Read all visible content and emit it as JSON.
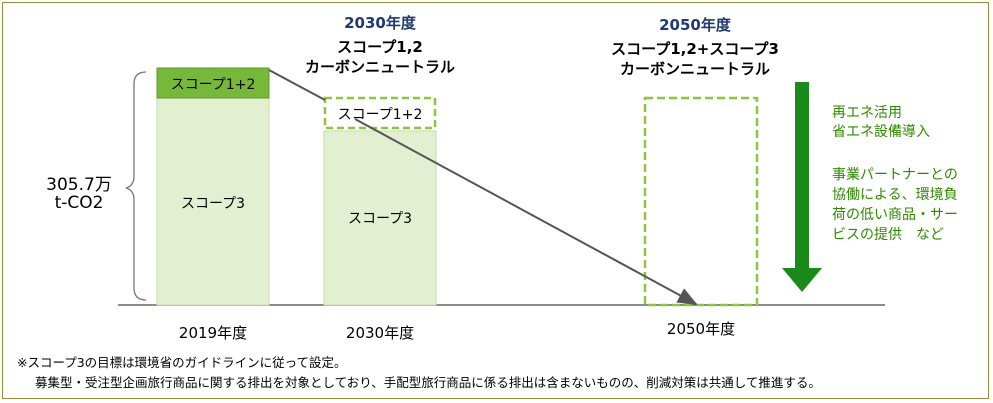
{
  "header_2030": {
    "year": "2030年度",
    "line1": "スコープ1,2",
    "line2": "カーボンニュートラル"
  },
  "header_2050": {
    "year": "2050年度",
    "line1": "スコープ1,2+スコープ3",
    "line2": "カーボンニュートラル"
  },
  "total_emissions": {
    "value": "305.7万",
    "unit": "t-CO2"
  },
  "bars": {
    "bar_2019": {
      "scope12": "スコープ1+2",
      "scope3": "スコープ3"
    },
    "bar_2030": {
      "scope12": "スコープ1+2",
      "scope3": "スコープ3"
    }
  },
  "axis": {
    "year_2019": "2019年度",
    "year_2030": "2030年度",
    "year_2050": "2050年度"
  },
  "measures": {
    "line1": "再エネ活用",
    "line2": "省エネ設備導入",
    "line3": "事業パートナーとの",
    "line4": "協働による、環境負",
    "line5": "荷の低い商品・サー",
    "line6": "ビスの提供　など"
  },
  "notes": {
    "line1": "※スコープ3の目標は環境省のガイドラインに従って設定。",
    "line2": "募集型・受注型企画旅行商品に関する排出を対象としており、手配型旅行商品に係る排出は含まないものの、削減対策は共通して推進する。"
  },
  "colors": {
    "scope3_fill": "#e2efd0",
    "scope12_fill": "#76b83a",
    "dashed_green": "#8cc63f",
    "arrow_green": "#1a8a1a",
    "header_blue": "#1f3a6e",
    "frame": "#a08a3c"
  }
}
